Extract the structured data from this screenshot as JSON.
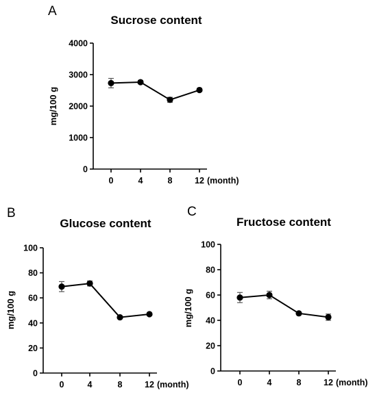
{
  "chart_data": [
    {
      "panel": "A",
      "type": "line",
      "title": "Sucrose content",
      "ylabel": "mg/100 g",
      "xlabel": "(month)",
      "categories": [
        "0",
        "4",
        "8",
        "12"
      ],
      "values": [
        2730,
        2760,
        2200,
        2510
      ],
      "errors": [
        150,
        50,
        80,
        50
      ],
      "ylim": [
        0,
        4000
      ],
      "yticks": [
        "0",
        "1000",
        "2000",
        "3000",
        "4000"
      ],
      "grid": false,
      "color": "#000000"
    },
    {
      "panel": "B",
      "type": "line",
      "title": "Glucose content",
      "ylabel": "mg/100 g",
      "xlabel": "(month)",
      "categories": [
        "0",
        "4",
        "8",
        "12"
      ],
      "values": [
        69,
        71.5,
        44.5,
        47
      ],
      "errors": [
        4,
        2,
        0.8,
        0.8
      ],
      "ylim": [
        0,
        100
      ],
      "yticks": [
        "0",
        "20",
        "40",
        "60",
        "80",
        "100"
      ],
      "grid": false,
      "color": "#000000"
    },
    {
      "panel": "C",
      "type": "line",
      "title": "Fructose content",
      "ylabel": "mg/100 g",
      "xlabel": "(month)",
      "categories": [
        "0",
        "4",
        "8",
        "12"
      ],
      "values": [
        58,
        60,
        45.5,
        42.5
      ],
      "errors": [
        4,
        3,
        0.8,
        2.5
      ],
      "ylim": [
        0,
        100
      ],
      "yticks": [
        "0",
        "20",
        "40",
        "60",
        "80",
        "100"
      ],
      "grid": false,
      "color": "#000000"
    }
  ]
}
